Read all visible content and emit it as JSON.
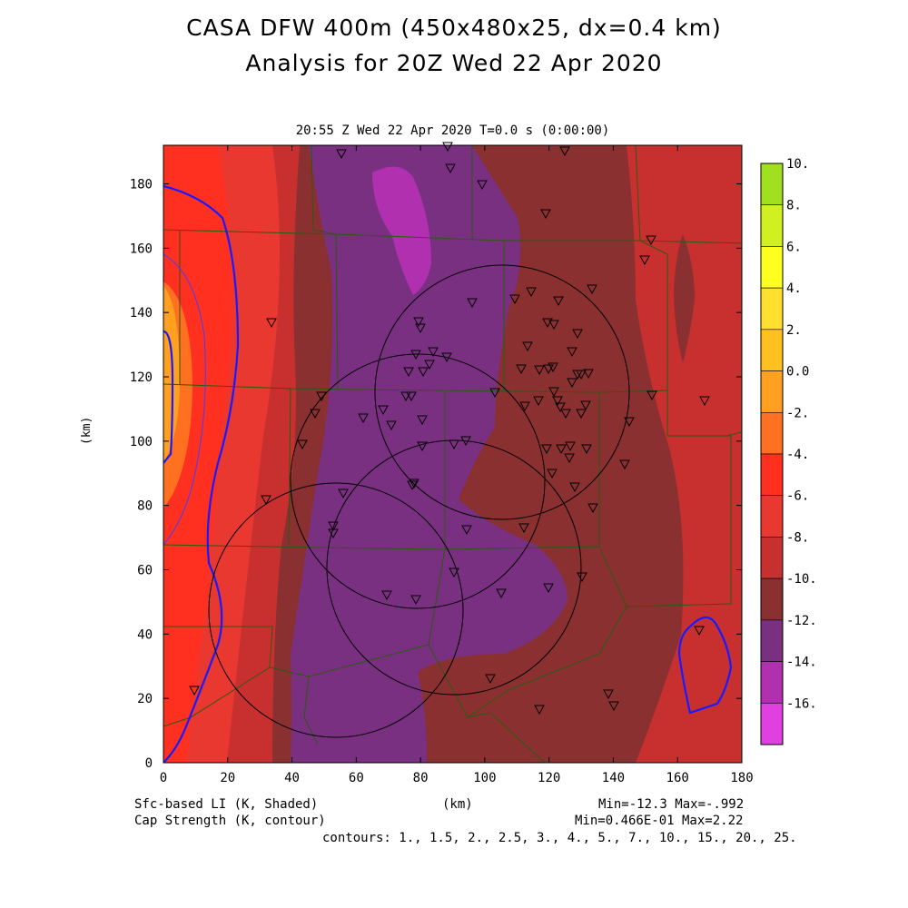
{
  "title_line1": "CASA DFW 400m (450x480x25, dx=0.4 km)",
  "title_line2": "Analysis for 20Z Wed 22 Apr 2020",
  "plot_subtitle": "20:55 Z Wed 22 Apr 2020    T=0.0 s (0:00:00)",
  "y_axis_label": "(km)",
  "x_axis_label": "(km)",
  "x_ticks": [
    "0",
    "20",
    "40",
    "60",
    "80",
    "100",
    "120",
    "140",
    "160",
    "180"
  ],
  "y_ticks": [
    "0",
    "20",
    "40",
    "60",
    "80",
    "100",
    "120",
    "140",
    "160",
    "180"
  ],
  "colorbar_labels": [
    "10.",
    "8.",
    "6.",
    "4.",
    "2.",
    "0.0",
    "-2.",
    "-4.",
    "-6.",
    "-8.",
    "-10.",
    "-12.",
    "-14.",
    "-16."
  ],
  "colorbar_colors": [
    "#a0e020",
    "#d0f020",
    "#ffff20",
    "#ffe030",
    "#ffc020",
    "#ffa020",
    "#ff7020",
    "#ff3020",
    "#e83830",
    "#c83030",
    "#8a3030",
    "#7a3080",
    "#b030b0",
    "#e040e0"
  ],
  "footer": {
    "field1_label": "Sfc-based LI (K, Shaded)",
    "field2_label": "Cap Strength (K, contour)",
    "field1_range": "Min=-12.3 Max=-.992",
    "field2_range": "Min=0.466E-01 Max=2.22",
    "contours": "contours: 1., 1.5, 2., 2.5, 3., 4., 5., 7., 10., 15., 20., 25."
  },
  "radar_ranges": [
    "circle-1",
    "circle-2",
    "circle-3",
    "circle-4"
  ],
  "station_marker": "triangle-down-icon"
}
